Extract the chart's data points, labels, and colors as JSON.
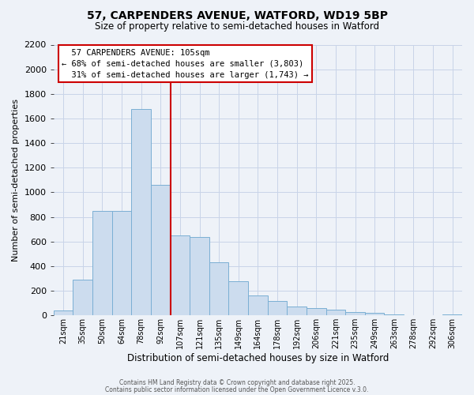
{
  "title1": "57, CARPENDERS AVENUE, WATFORD, WD19 5BP",
  "title2": "Size of property relative to semi-detached houses in Watford",
  "xlabel": "Distribution of semi-detached houses by size in Watford",
  "ylabel": "Number of semi-detached properties",
  "categories": [
    "21sqm",
    "35sqm",
    "50sqm",
    "64sqm",
    "78sqm",
    "92sqm",
    "107sqm",
    "121sqm",
    "135sqm",
    "149sqm",
    "164sqm",
    "178sqm",
    "192sqm",
    "206sqm",
    "221sqm",
    "235sqm",
    "249sqm",
    "263sqm",
    "278sqm",
    "292sqm",
    "306sqm"
  ],
  "values": [
    40,
    290,
    850,
    850,
    1680,
    1060,
    650,
    640,
    430,
    280,
    160,
    120,
    70,
    60,
    50,
    30,
    20,
    10,
    5,
    0,
    10
  ],
  "bar_color": "#ccdcee",
  "bar_edge_color": "#7aafd4",
  "vline_index": 5,
  "vline_color": "#cc0000",
  "grid_color": "#c8d4e8",
  "background_color": "#eef2f8",
  "ylim": [
    0,
    2200
  ],
  "yticks": [
    0,
    200,
    400,
    600,
    800,
    1000,
    1200,
    1400,
    1600,
    1800,
    2000,
    2200
  ],
  "ann_line1": "57 CARPENDERS AVENUE: 105sqm",
  "ann_line2": "← 68% of semi-detached houses are smaller (3,803)",
  "ann_line3": "31% of semi-detached houses are larger (1,743) →",
  "footer1": "Contains HM Land Registry data © Crown copyright and database right 2025.",
  "footer2": "Contains public sector information licensed under the Open Government Licence v.3.0."
}
